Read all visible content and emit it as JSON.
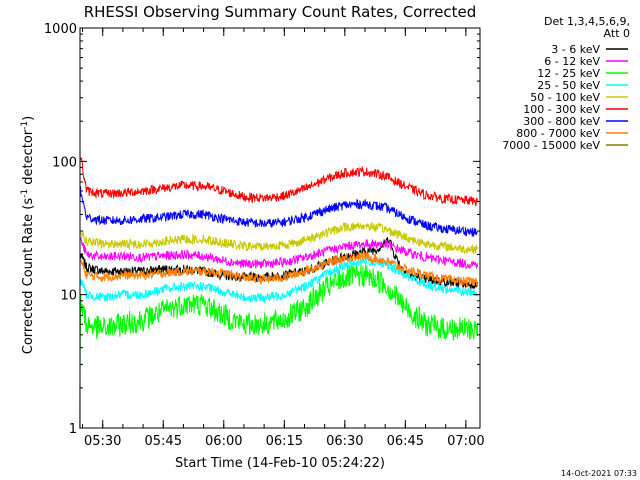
{
  "chart_data": {
    "type": "line",
    "title": "RHESSI Observing Summary Count Rates, Corrected",
    "xlabel": "Start Time (14-Feb-10 05:24:22)",
    "ylabel": "Corrected Count Rate (s",
    "ylabel_sup1": "-1",
    "ylabel_mid": " detector",
    "ylabel_sup2": "-1",
    "ylabel_end": ")",
    "y_scale": "log",
    "ylim": [
      1,
      1000
    ],
    "y_ticks": [
      {
        "value": 1,
        "label": "1"
      },
      {
        "value": 10,
        "label": "10"
      },
      {
        "value": 100,
        "label": "100"
      },
      {
        "value": 1000,
        "label": "1000"
      }
    ],
    "xlim_minutes": [
      324.37,
      423.5
    ],
    "x_ticks": [
      {
        "minutes": 330,
        "label": "05:30"
      },
      {
        "minutes": 345,
        "label": "05:45"
      },
      {
        "minutes": 360,
        "label": "06:00"
      },
      {
        "minutes": 375,
        "label": "06:15"
      },
      {
        "minutes": 390,
        "label": "06:30"
      },
      {
        "minutes": 405,
        "label": "06:45"
      },
      {
        "minutes": 420,
        "label": "07:00"
      }
    ],
    "legend": {
      "placement": "right",
      "header1": "Det 1,3,4,5,6,9,",
      "header2": "Att 0"
    },
    "series": [
      {
        "name": "3 - 6 keV",
        "color": "#000000",
        "points": [
          [
            324.5,
            20
          ],
          [
            326,
            16
          ],
          [
            330,
            15
          ],
          [
            335,
            15
          ],
          [
            340,
            15
          ],
          [
            345,
            15.5
          ],
          [
            350,
            15.5
          ],
          [
            355,
            15
          ],
          [
            360,
            14
          ],
          [
            365,
            13.5
          ],
          [
            370,
            13.5
          ],
          [
            375,
            14
          ],
          [
            380,
            15
          ],
          [
            385,
            17
          ],
          [
            390,
            19.5
          ],
          [
            395,
            21
          ],
          [
            398,
            22
          ],
          [
            400,
            24
          ],
          [
            401,
            27
          ],
          [
            402,
            21
          ],
          [
            404,
            16
          ],
          [
            406,
            14
          ],
          [
            410,
            13
          ],
          [
            415,
            12.5
          ],
          [
            420,
            12
          ],
          [
            423,
            12
          ]
        ]
      },
      {
        "name": "6 - 12 keV",
        "color": "#ff00ff",
        "points": [
          [
            324.5,
            26
          ],
          [
            326,
            20
          ],
          [
            330,
            19
          ],
          [
            335,
            19.5
          ],
          [
            340,
            19
          ],
          [
            345,
            19.5
          ],
          [
            350,
            20
          ],
          [
            355,
            19.5
          ],
          [
            360,
            18
          ],
          [
            365,
            17
          ],
          [
            370,
            17
          ],
          [
            375,
            17.5
          ],
          [
            380,
            19
          ],
          [
            385,
            21
          ],
          [
            390,
            23
          ],
          [
            395,
            24
          ],
          [
            400,
            24
          ],
          [
            405,
            21
          ],
          [
            410,
            19
          ],
          [
            415,
            18
          ],
          [
            420,
            17
          ],
          [
            423,
            17
          ]
        ]
      },
      {
        "name": "12 - 25 keV",
        "color": "#00ff00",
        "points": [
          [
            324.3,
            1
          ],
          [
            324.5,
            9
          ],
          [
            326,
            6
          ],
          [
            330,
            5.5
          ],
          [
            335,
            6
          ],
          [
            340,
            6.5
          ],
          [
            345,
            7.5
          ],
          [
            350,
            8.5
          ],
          [
            355,
            8.5
          ],
          [
            360,
            7
          ],
          [
            365,
            6
          ],
          [
            370,
            6
          ],
          [
            375,
            6.5
          ],
          [
            380,
            8
          ],
          [
            385,
            11
          ],
          [
            390,
            13.5
          ],
          [
            395,
            14
          ],
          [
            400,
            12
          ],
          [
            405,
            8
          ],
          [
            410,
            6
          ],
          [
            415,
            5.5
          ],
          [
            420,
            5.5
          ],
          [
            423,
            5.5
          ]
        ]
      },
      {
        "name": "25 - 50 keV",
        "color": "#00ffff",
        "points": [
          [
            324.5,
            13
          ],
          [
            326,
            10
          ],
          [
            330,
            9.5
          ],
          [
            335,
            10
          ],
          [
            340,
            10
          ],
          [
            345,
            11
          ],
          [
            350,
            11.5
          ],
          [
            355,
            11.5
          ],
          [
            360,
            10.5
          ],
          [
            365,
            9.5
          ],
          [
            370,
            9.5
          ],
          [
            375,
            10
          ],
          [
            380,
            11.5
          ],
          [
            385,
            14
          ],
          [
            390,
            16.5
          ],
          [
            395,
            18
          ],
          [
            400,
            17
          ],
          [
            405,
            14
          ],
          [
            410,
            12
          ],
          [
            415,
            11
          ],
          [
            420,
            10.5
          ],
          [
            423,
            10.5
          ]
        ]
      },
      {
        "name": "50 - 100 keV",
        "color": "#c8c800",
        "points": [
          [
            324.5,
            30
          ],
          [
            326,
            25
          ],
          [
            330,
            24
          ],
          [
            335,
            24
          ],
          [
            340,
            24
          ],
          [
            345,
            25
          ],
          [
            350,
            26
          ],
          [
            355,
            26
          ],
          [
            360,
            24.5
          ],
          [
            365,
            23
          ],
          [
            370,
            23
          ],
          [
            375,
            23.5
          ],
          [
            380,
            25.5
          ],
          [
            385,
            29
          ],
          [
            390,
            32
          ],
          [
            395,
            33
          ],
          [
            400,
            31
          ],
          [
            405,
            27
          ],
          [
            410,
            24
          ],
          [
            415,
            23
          ],
          [
            420,
            22
          ],
          [
            423,
            22
          ]
        ]
      },
      {
        "name": "100 - 300 keV",
        "color": "#ff0000",
        "points": [
          [
            324.5,
            110
          ],
          [
            326,
            60
          ],
          [
            330,
            57
          ],
          [
            335,
            58
          ],
          [
            340,
            60
          ],
          [
            345,
            63
          ],
          [
            350,
            66
          ],
          [
            355,
            65
          ],
          [
            360,
            60
          ],
          [
            365,
            54
          ],
          [
            370,
            53
          ],
          [
            375,
            55
          ],
          [
            380,
            62
          ],
          [
            385,
            73
          ],
          [
            390,
            82
          ],
          [
            395,
            84
          ],
          [
            400,
            78
          ],
          [
            405,
            65
          ],
          [
            410,
            56
          ],
          [
            415,
            52
          ],
          [
            420,
            51
          ],
          [
            423,
            50
          ]
        ]
      },
      {
        "name": "300 - 800 keV",
        "color": "#0000ff",
        "points": [
          [
            324.5,
            60
          ],
          [
            326,
            38
          ],
          [
            330,
            36
          ],
          [
            335,
            36
          ],
          [
            340,
            37
          ],
          [
            345,
            38
          ],
          [
            350,
            40
          ],
          [
            355,
            40
          ],
          [
            360,
            37
          ],
          [
            365,
            35
          ],
          [
            370,
            34
          ],
          [
            375,
            35
          ],
          [
            380,
            38
          ],
          [
            385,
            43
          ],
          [
            390,
            47
          ],
          [
            395,
            48
          ],
          [
            400,
            45
          ],
          [
            405,
            38
          ],
          [
            410,
            33
          ],
          [
            415,
            31
          ],
          [
            420,
            30
          ],
          [
            423,
            29
          ]
        ]
      },
      {
        "name": "800 - 7000 keV",
        "color": "#ff8000",
        "points": [
          [
            324.5,
            18
          ],
          [
            326,
            14
          ],
          [
            330,
            13.5
          ],
          [
            335,
            14
          ],
          [
            340,
            14
          ],
          [
            345,
            14.5
          ],
          [
            350,
            15
          ],
          [
            355,
            15
          ],
          [
            360,
            14.5
          ],
          [
            365,
            13.5
          ],
          [
            370,
            13
          ],
          [
            375,
            13.5
          ],
          [
            380,
            15
          ],
          [
            385,
            17
          ],
          [
            390,
            19
          ],
          [
            395,
            19.5
          ],
          [
            400,
            18
          ],
          [
            405,
            15.5
          ],
          [
            410,
            14
          ],
          [
            415,
            13
          ],
          [
            420,
            12.5
          ],
          [
            423,
            12.5
          ]
        ]
      },
      {
        "name": "7000 - 15000 keV",
        "color": "#808000",
        "points": []
      }
    ]
  }
}
